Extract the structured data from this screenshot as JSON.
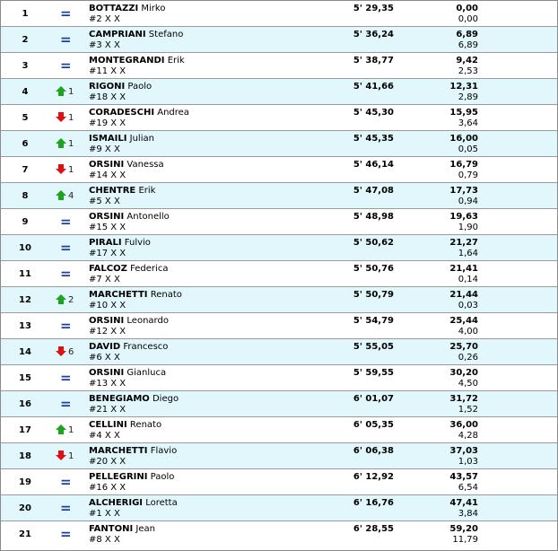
{
  "rows": [
    {
      "pos": "1",
      "change": "same",
      "change_num": "",
      "surname": "BOTTAZZI",
      "first": "Mirko",
      "bib": "#2 X X",
      "time": "5' 29,35",
      "gap": "0,00",
      "diff": "0,00"
    },
    {
      "pos": "2",
      "change": "same",
      "change_num": "",
      "surname": "CAMPRIANI",
      "first": "Stefano",
      "bib": "#3 X X",
      "time": "5' 36,24",
      "gap": "6,89",
      "diff": "6,89"
    },
    {
      "pos": "3",
      "change": "same",
      "change_num": "",
      "surname": "MONTEGRANDI",
      "first": "Erik",
      "bib": "#11 X X",
      "time": "5' 38,77",
      "gap": "9,42",
      "diff": "2,53"
    },
    {
      "pos": "4",
      "change": "up",
      "change_num": "1",
      "surname": "RIGONI",
      "first": "Paolo",
      "bib": "#18 X X",
      "time": "5' 41,66",
      "gap": "12,31",
      "diff": "2,89"
    },
    {
      "pos": "5",
      "change": "down",
      "change_num": "1",
      "surname": "CORADESCHI",
      "first": "Andrea",
      "bib": "#19 X X",
      "time": "5' 45,30",
      "gap": "15,95",
      "diff": "3,64"
    },
    {
      "pos": "6",
      "change": "up",
      "change_num": "1",
      "surname": "ISMAILI",
      "first": "Julian",
      "bib": "#9 X X",
      "time": "5' 45,35",
      "gap": "16,00",
      "diff": "0,05"
    },
    {
      "pos": "7",
      "change": "down",
      "change_num": "1",
      "surname": "ORSINI",
      "first": "Vanessa",
      "bib": "#14 X X",
      "time": "5' 46,14",
      "gap": "16,79",
      "diff": "0,79"
    },
    {
      "pos": "8",
      "change": "up",
      "change_num": "4",
      "surname": "CHENTRE",
      "first": "Erik",
      "bib": "#5 X X",
      "time": "5' 47,08",
      "gap": "17,73",
      "diff": "0,94"
    },
    {
      "pos": "9",
      "change": "same",
      "change_num": "",
      "surname": "ORSINI",
      "first": "Antonello",
      "bib": "#15 X X",
      "time": "5' 48,98",
      "gap": "19,63",
      "diff": "1,90"
    },
    {
      "pos": "10",
      "change": "same",
      "change_num": "",
      "surname": "PIRALI",
      "first": "Fulvio",
      "bib": "#17 X X",
      "time": "5' 50,62",
      "gap": "21,27",
      "diff": "1,64"
    },
    {
      "pos": "11",
      "change": "same",
      "change_num": "",
      "surname": "FALCOZ",
      "first": "Federica",
      "bib": "#7 X X",
      "time": "5' 50,76",
      "gap": "21,41",
      "diff": "0,14"
    },
    {
      "pos": "12",
      "change": "up",
      "change_num": "2",
      "surname": "MARCHETTI",
      "first": "Renato",
      "bib": "#10 X X",
      "time": "5' 50,79",
      "gap": "21,44",
      "diff": "0,03"
    },
    {
      "pos": "13",
      "change": "same",
      "change_num": "",
      "surname": "ORSINI",
      "first": "Leonardo",
      "bib": "#12 X X",
      "time": "5' 54,79",
      "gap": "25,44",
      "diff": "4,00"
    },
    {
      "pos": "14",
      "change": "down",
      "change_num": "6",
      "surname": "DAVID",
      "first": "Francesco",
      "bib": "#6 X X",
      "time": "5' 55,05",
      "gap": "25,70",
      "diff": "0,26"
    },
    {
      "pos": "15",
      "change": "same",
      "change_num": "",
      "surname": "ORSINI",
      "first": "Gianluca",
      "bib": "#13 X X",
      "time": "5' 59,55",
      "gap": "30,20",
      "diff": "4,50"
    },
    {
      "pos": "16",
      "change": "same",
      "change_num": "",
      "surname": "BENEGIAMO",
      "first": "Diego",
      "bib": "#21 X X",
      "time": "6' 01,07",
      "gap": "31,72",
      "diff": "1,52"
    },
    {
      "pos": "17",
      "change": "up",
      "change_num": "1",
      "surname": "CELLINI",
      "first": "Renato",
      "bib": "#4 X X",
      "time": "6' 05,35",
      "gap": "36,00",
      "diff": "4,28"
    },
    {
      "pos": "18",
      "change": "down",
      "change_num": "1",
      "surname": "MARCHETTI",
      "first": "Flavio",
      "bib": "#20 X X",
      "time": "6' 06,38",
      "gap": "37,03",
      "diff": "1,03"
    },
    {
      "pos": "19",
      "change": "same",
      "change_num": "",
      "surname": "PELLEGRINI",
      "first": "Paolo",
      "bib": "#16 X X",
      "time": "6' 12,92",
      "gap": "43,57",
      "diff": "6,54"
    },
    {
      "pos": "20",
      "change": "same",
      "change_num": "",
      "surname": "ALCHERIGI",
      "first": "Loretta",
      "bib": "#1 X X",
      "time": "6' 16,76",
      "gap": "47,41",
      "diff": "3,84"
    },
    {
      "pos": "21",
      "change": "same",
      "change_num": "",
      "surname": "FANTONI",
      "first": "Jean",
      "bib": "#8 X X",
      "time": "6' 28,55",
      "gap": "59,20",
      "diff": "11,79"
    }
  ],
  "icons": {
    "same": "equals-icon",
    "up": "arrow-up-icon",
    "down": "arrow-down-icon"
  },
  "same_symbol": "=",
  "colors": {
    "row_alt": "#e1f7fb",
    "equals": "#1e3f9e",
    "up": "#1aa51a",
    "down": "#e01010"
  }
}
